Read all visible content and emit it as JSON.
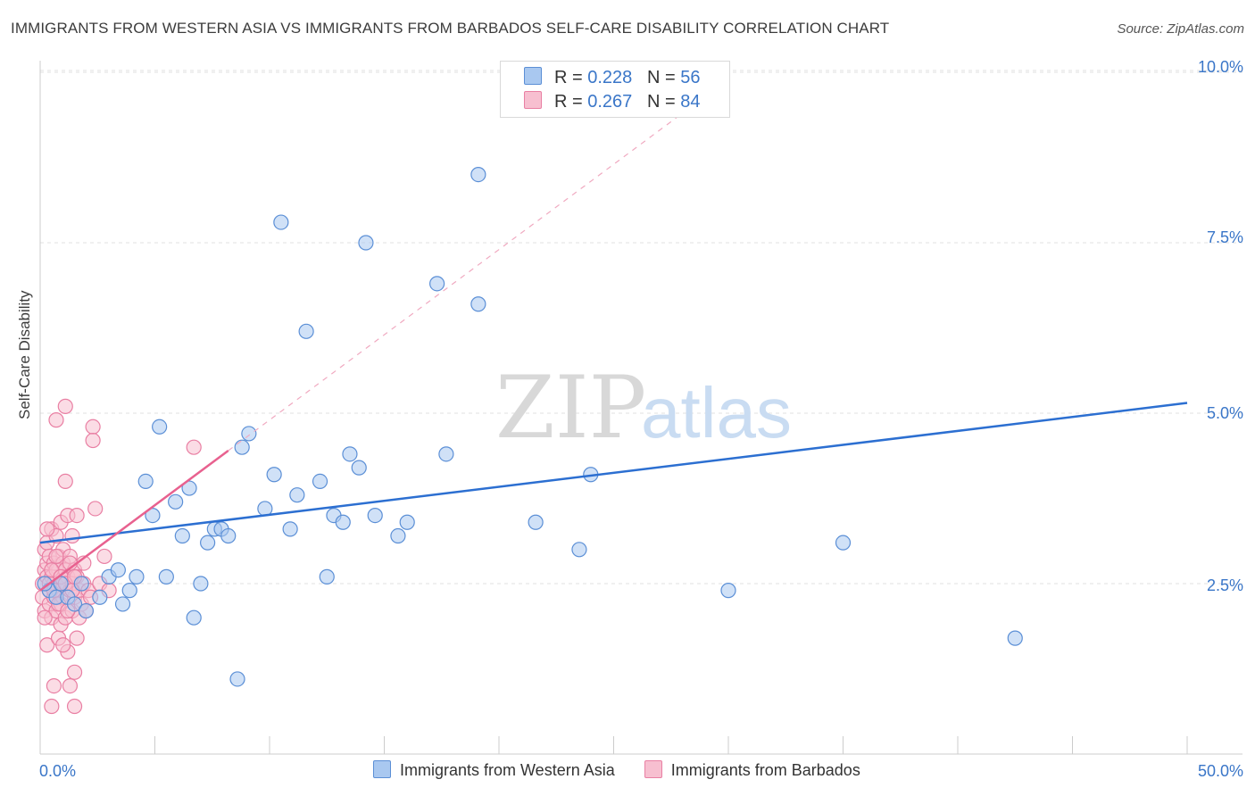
{
  "title": "IMMIGRANTS FROM WESTERN ASIA VS IMMIGRANTS FROM BARBADOS SELF-CARE DISABILITY CORRELATION CHART",
  "source": "Source: ZipAtlas.com",
  "watermark": {
    "zip": "ZIP",
    "atlas": "atlas"
  },
  "legend": {
    "rows": [
      {
        "r_label": "R = ",
        "r_value": "0.228",
        "n_label": "N = ",
        "n_value": "56"
      },
      {
        "r_label": "R = ",
        "r_value": "0.267",
        "n_label": "N = ",
        "n_value": "84"
      }
    ]
  },
  "chart_data": {
    "type": "scatter",
    "title": "IMMIGRANTS FROM WESTERN ASIA VS IMMIGRANTS FROM BARBADOS SELF-CARE DISABILITY CORRELATION CHART",
    "xlabel": "",
    "ylabel": "Self-Care Disability",
    "xlim": [
      0,
      50
    ],
    "ylim": [
      0,
      10.5
    ],
    "x_tick_labels": [
      "0.0%",
      "50.0%"
    ],
    "y_ticks": [
      2.5,
      5.0,
      7.5,
      10.0
    ],
    "y_tick_labels": [
      "2.5%",
      "5.0%",
      "7.5%",
      "10.0%"
    ],
    "grid": true,
    "legend_position": "top-center",
    "colors": {
      "blue_fill": "#a9c8f0",
      "blue_stroke": "#5b8fd6",
      "blue_line": "#2c6fd1",
      "pink_fill": "#f7bfd0",
      "pink_stroke": "#e97fa3",
      "pink_line": "#e8618f",
      "axis_text": "#3a76c8"
    },
    "series": [
      {
        "name": "Immigrants from Western Asia",
        "points": [
          [
            0.4,
            2.4
          ],
          [
            0.7,
            2.3
          ],
          [
            0.9,
            2.5
          ],
          [
            1.2,
            2.3
          ],
          [
            1.8,
            2.5
          ],
          [
            1.5,
            2.2
          ],
          [
            2.0,
            2.1
          ],
          [
            2.6,
            2.3
          ],
          [
            3.0,
            2.6
          ],
          [
            3.4,
            2.7
          ],
          [
            3.6,
            2.2
          ],
          [
            3.9,
            2.4
          ],
          [
            4.2,
            2.6
          ],
          [
            4.6,
            4.0
          ],
          [
            4.9,
            3.5
          ],
          [
            5.2,
            4.8
          ],
          [
            5.5,
            2.6
          ],
          [
            5.9,
            3.7
          ],
          [
            6.2,
            3.2
          ],
          [
            6.5,
            3.9
          ],
          [
            6.7,
            2.0
          ],
          [
            7.0,
            2.5
          ],
          [
            7.3,
            3.1
          ],
          [
            7.6,
            3.3
          ],
          [
            7.9,
            3.3
          ],
          [
            8.2,
            3.2
          ],
          [
            8.6,
            1.1
          ],
          [
            8.8,
            4.5
          ],
          [
            9.1,
            4.7
          ],
          [
            9.8,
            3.6
          ],
          [
            10.2,
            4.1
          ],
          [
            10.5,
            7.8
          ],
          [
            10.9,
            3.3
          ],
          [
            11.2,
            3.8
          ],
          [
            11.6,
            6.2
          ],
          [
            12.2,
            4.0
          ],
          [
            12.5,
            2.6
          ],
          [
            12.8,
            3.5
          ],
          [
            13.2,
            3.4
          ],
          [
            13.5,
            4.4
          ],
          [
            13.9,
            4.2
          ],
          [
            14.2,
            7.5
          ],
          [
            14.6,
            3.5
          ],
          [
            15.6,
            3.2
          ],
          [
            16.0,
            3.4
          ],
          [
            17.3,
            6.9
          ],
          [
            17.7,
            4.4
          ],
          [
            19.1,
            6.6
          ],
          [
            19.1,
            8.5
          ],
          [
            21.6,
            3.4
          ],
          [
            23.5,
            3.0
          ],
          [
            24.0,
            4.1
          ],
          [
            30.0,
            2.4
          ],
          [
            35.0,
            3.1
          ],
          [
            42.5,
            1.7
          ],
          [
            0.2,
            2.5
          ]
        ]
      },
      {
        "name": "Immigrants from Barbados",
        "points": [
          [
            0.1,
            2.5
          ],
          [
            0.1,
            2.3
          ],
          [
            0.2,
            2.7
          ],
          [
            0.2,
            2.1
          ],
          [
            0.2,
            3.0
          ],
          [
            0.3,
            2.8
          ],
          [
            0.3,
            1.6
          ],
          [
            0.3,
            2.6
          ],
          [
            0.3,
            3.1
          ],
          [
            0.4,
            2.4
          ],
          [
            0.4,
            2.9
          ],
          [
            0.4,
            2.2
          ],
          [
            0.5,
            2.6
          ],
          [
            0.5,
            3.3
          ],
          [
            0.5,
            2.0
          ],
          [
            0.5,
            0.7
          ],
          [
            0.6,
            2.5
          ],
          [
            0.6,
            2.8
          ],
          [
            0.6,
            2.3
          ],
          [
            0.6,
            1.0
          ],
          [
            0.7,
            4.9
          ],
          [
            0.7,
            2.7
          ],
          [
            0.7,
            3.2
          ],
          [
            0.7,
            2.1
          ],
          [
            0.8,
            2.4
          ],
          [
            0.8,
            1.7
          ],
          [
            0.8,
            2.9
          ],
          [
            0.9,
            2.6
          ],
          [
            0.9,
            3.4
          ],
          [
            0.9,
            2.2
          ],
          [
            0.9,
            1.9
          ],
          [
            1.0,
            2.5
          ],
          [
            1.0,
            2.8
          ],
          [
            1.0,
            3.0
          ],
          [
            1.0,
            2.3
          ],
          [
            1.1,
            4.0
          ],
          [
            1.1,
            5.1
          ],
          [
            1.1,
            2.7
          ],
          [
            1.1,
            2.0
          ],
          [
            1.2,
            1.5
          ],
          [
            1.2,
            2.6
          ],
          [
            1.2,
            3.5
          ],
          [
            1.3,
            2.4
          ],
          [
            1.3,
            1.0
          ],
          [
            1.3,
            2.9
          ],
          [
            1.4,
            2.1
          ],
          [
            1.4,
            3.2
          ],
          [
            1.4,
            2.5
          ],
          [
            1.5,
            2.7
          ],
          [
            1.5,
            1.2
          ],
          [
            1.5,
            0.7
          ],
          [
            1.5,
            2.3
          ],
          [
            1.6,
            1.7
          ],
          [
            1.6,
            2.6
          ],
          [
            1.6,
            3.5
          ],
          [
            1.7,
            2.0
          ],
          [
            1.7,
            2.4
          ],
          [
            1.8,
            2.2
          ],
          [
            1.9,
            2.5
          ],
          [
            1.9,
            2.8
          ],
          [
            2.0,
            2.1
          ],
          [
            2.1,
            2.4
          ],
          [
            2.2,
            2.3
          ],
          [
            2.3,
            4.8
          ],
          [
            2.3,
            4.6
          ],
          [
            2.4,
            3.6
          ],
          [
            2.6,
            2.5
          ],
          [
            2.8,
            2.9
          ],
          [
            3.0,
            2.4
          ],
          [
            0.2,
            2.0
          ],
          [
            0.3,
            3.3
          ],
          [
            0.4,
            2.5
          ],
          [
            0.5,
            2.7
          ],
          [
            0.6,
            2.4
          ],
          [
            0.7,
            2.9
          ],
          [
            0.8,
            2.2
          ],
          [
            0.9,
            2.6
          ],
          [
            1.0,
            1.6
          ],
          [
            1.1,
            2.5
          ],
          [
            1.2,
            2.1
          ],
          [
            1.3,
            2.8
          ],
          [
            1.4,
            2.4
          ],
          [
            1.5,
            2.6
          ],
          [
            6.7,
            4.5
          ]
        ]
      }
    ],
    "trend_lines": [
      {
        "series": "Immigrants from Western Asia",
        "x": [
          0,
          50
        ],
        "y": [
          3.1,
          5.15
        ]
      },
      {
        "series": "Immigrants from Barbados",
        "x": [
          0,
          8.2
        ],
        "y": [
          2.4,
          4.45
        ],
        "dashed_extension": {
          "x": [
            8.2,
            28
          ],
          "y": [
            4.45,
            9.4
          ]
        }
      }
    ]
  }
}
